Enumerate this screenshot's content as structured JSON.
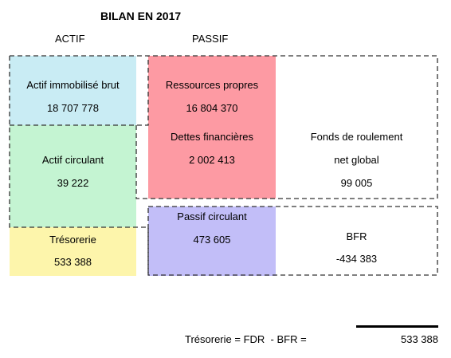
{
  "title": "BILAN EN 2017",
  "headers": {
    "actif": "ACTIF",
    "passif": "PASSIF"
  },
  "actif": {
    "immobilise": {
      "label": "Actif immobilisé brut",
      "value": "18 707 778",
      "color": "#c9ecf4"
    },
    "circulant": {
      "label": "Actif circulant",
      "value": "39 222",
      "color": "#c4f4d2"
    },
    "tresorerie": {
      "label": "Trésorerie",
      "value": "533 388",
      "color": "#fdf5ab"
    }
  },
  "passif": {
    "ressources": {
      "label": "Ressources propres",
      "value": "16 804 370",
      "color": "#fd9aa3"
    },
    "dettes": {
      "label": "Dettes financières",
      "value": "2 002 413"
    },
    "circulant": {
      "label": "Passif circulant",
      "value": "473 605",
      "color": "#c2bef8"
    }
  },
  "fdr": {
    "line1": "Fonds de roulement",
    "line2": "net global",
    "value": "99 005"
  },
  "bfr": {
    "label": "BFR",
    "value": "-434 383"
  },
  "formula": {
    "text": "Trésorerie = FDR  - BFR =",
    "value": "533 388"
  }
}
